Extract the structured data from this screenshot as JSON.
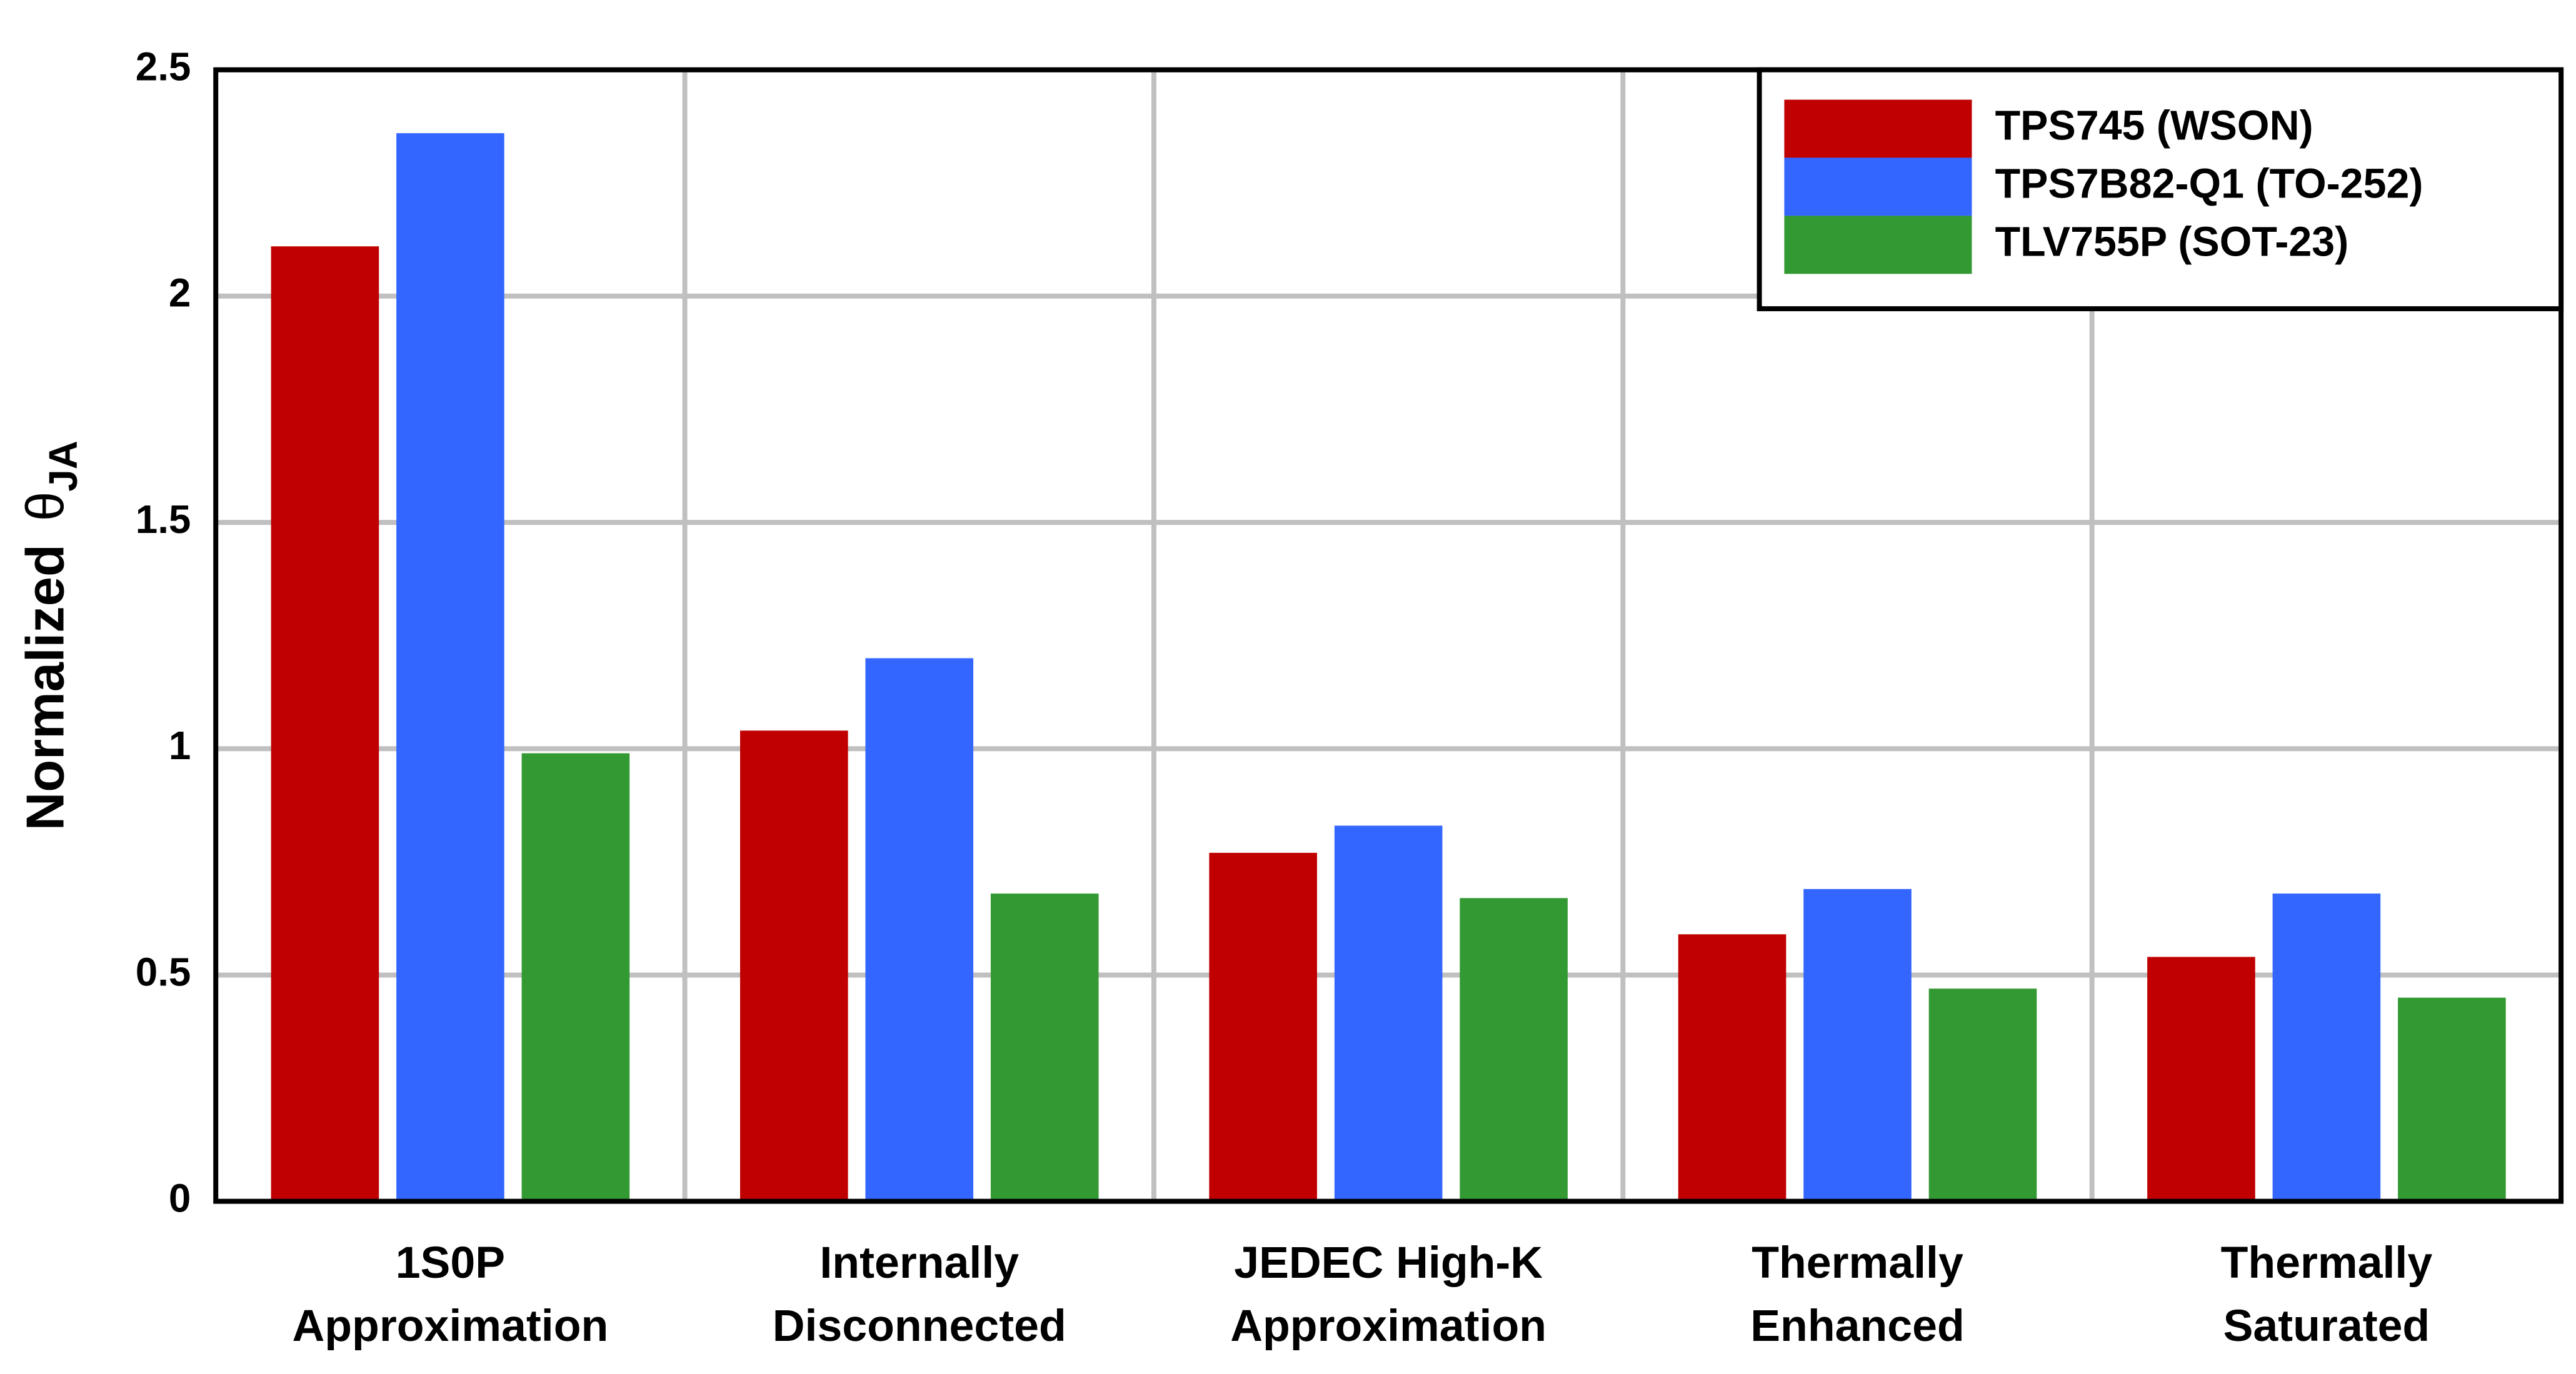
{
  "chart_data": {
    "type": "bar",
    "ylabel": {
      "text": "Normalized",
      "symbol": "θ",
      "subscript": "JA"
    },
    "categories": [
      "1S0P\nApproximation",
      "Internally\nDisconnected",
      "JEDEC High-K\nApproximation",
      "Thermally\nEnhanced",
      "Thermally\nSaturated"
    ],
    "series": [
      {
        "name": "TPS745 (WSON)",
        "color": "#c00000",
        "values": [
          2.11,
          1.04,
          0.77,
          0.59,
          0.54
        ]
      },
      {
        "name": "TPS7B82-Q1 (TO-252)",
        "color": "#3366ff",
        "values": [
          2.36,
          1.2,
          0.83,
          0.69,
          0.68
        ]
      },
      {
        "name": "TLV755P (SOT-23)",
        "color": "#339933",
        "values": [
          0.99,
          0.68,
          0.67,
          0.47,
          0.45
        ]
      }
    ],
    "ylim": [
      0,
      2.5
    ],
    "yticks": [
      0,
      0.5,
      1,
      1.5,
      2,
      2.5
    ],
    "grid": true,
    "legend": "upper right"
  }
}
